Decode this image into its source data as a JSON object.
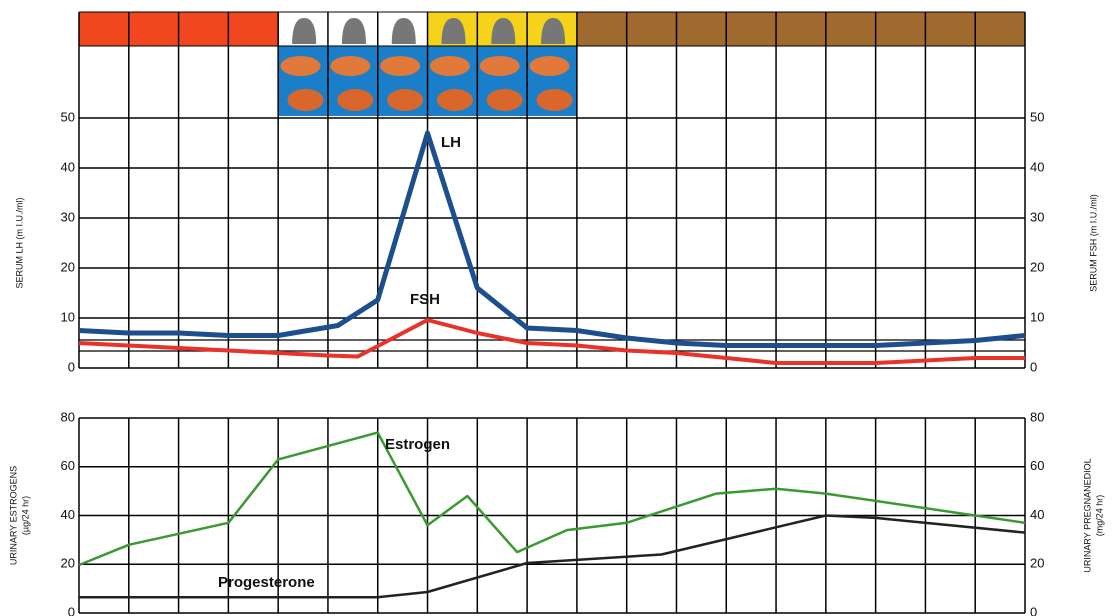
{
  "chart_data": [
    {
      "type": "line",
      "ylabel": [
        "SERUM LH (m I.U./ml)"
      ],
      "y2label": [
        "SERUM FSH (m I.U./ml)"
      ],
      "xlim": [
        0,
        19
      ],
      "ylim": [
        0,
        50
      ],
      "yticks": [
        0,
        10,
        20,
        30,
        40,
        50
      ],
      "y2lim": [
        0,
        50
      ],
      "y2ticks": [
        0,
        10,
        20,
        30,
        40,
        50
      ],
      "series": [
        {
          "name": "LH",
          "color": "#1d4f8f",
          "x": [
            0,
            1,
            2,
            3,
            4,
            5.2,
            6,
            7,
            8,
            9,
            10,
            11,
            12,
            13,
            14,
            15,
            16,
            17,
            18,
            19
          ],
          "values": [
            7.5,
            7,
            7,
            6.5,
            6.5,
            8.5,
            13.6,
            47,
            16,
            8,
            7.5,
            6,
            5,
            4.5,
            4.5,
            4.5,
            4.5,
            5,
            5.5,
            6.5
          ]
        },
        {
          "name": "FSH",
          "color": "#e8322a",
          "axis": "y2",
          "x": [
            0,
            1,
            2,
            3,
            4,
            5,
            5.6,
            7,
            8,
            9,
            10,
            11,
            12,
            13,
            14,
            15,
            16,
            17,
            18,
            19
          ],
          "values": [
            5,
            4.5,
            4,
            3.5,
            3,
            2.5,
            2.3,
            9.6,
            7,
            5,
            4.5,
            3.5,
            3,
            2,
            1,
            1,
            1,
            1.5,
            2,
            2
          ]
        }
      ]
    },
    {
      "type": "line",
      "ylabel": [
        "URINARY ESTROGENS",
        "(µg/24 hr)"
      ],
      "y2label": [
        "URINARY PREGNANEDIOL",
        "(mg/24 hr)"
      ],
      "xlim": [
        0,
        19
      ],
      "ylim": [
        0,
        80
      ],
      "yticks": [
        0,
        20,
        40,
        60,
        80
      ],
      "y2lim": [
        0,
        80
      ],
      "y2ticks": [
        0,
        20,
        40,
        60,
        80
      ],
      "series": [
        {
          "name": "Estrogen",
          "color": "#3a9a30",
          "x": [
            0,
            1,
            3,
            4,
            6,
            7,
            7.8,
            8.8,
            9.8,
            11,
            12.8,
            14,
            15,
            19
          ],
          "values": [
            19.7,
            28,
            37,
            63,
            74,
            36,
            48,
            25,
            34,
            37,
            49,
            51,
            49,
            37
          ]
        },
        {
          "name": "Progesterone",
          "color": "#222222",
          "axis": "y2",
          "x": [
            0,
            6,
            7,
            9,
            11.7,
            15,
            16,
            19
          ],
          "values": [
            6.5,
            6.5,
            8.6,
            20.5,
            24,
            40,
            39,
            33
          ]
        }
      ]
    }
  ]
}
